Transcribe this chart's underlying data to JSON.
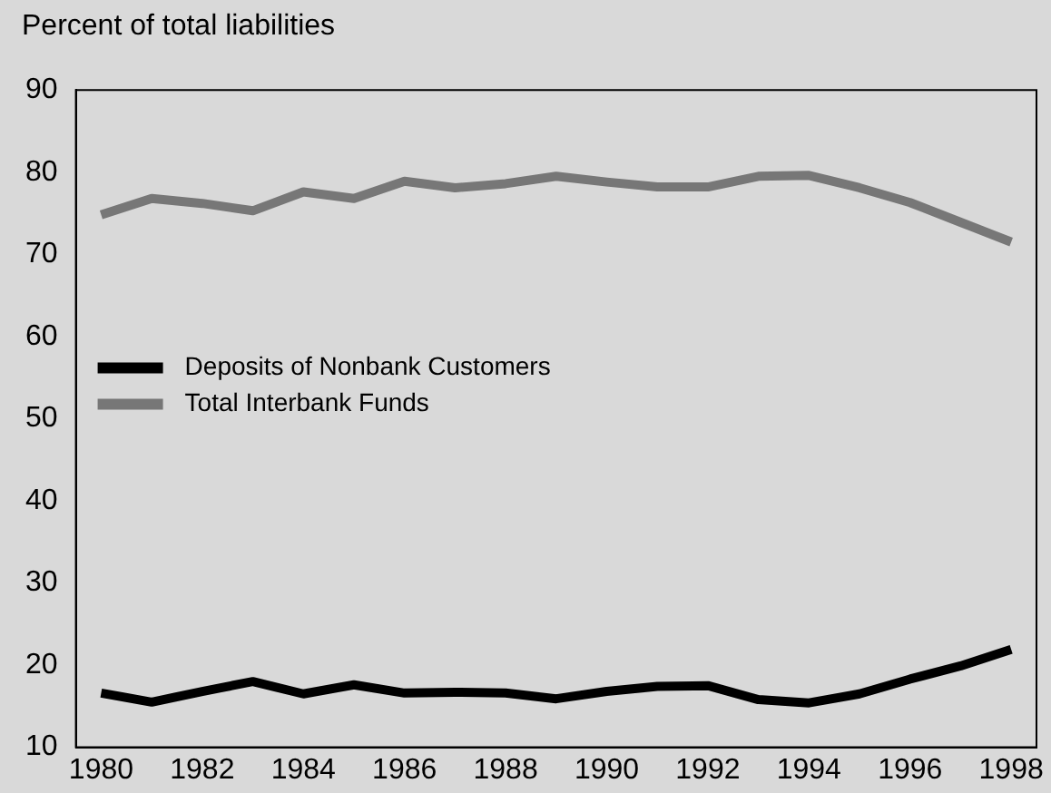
{
  "chart_data": {
    "type": "line",
    "ylabel": "Percent of total liabilities",
    "x": [
      1980,
      1981,
      1982,
      1983,
      1984,
      1985,
      1986,
      1987,
      1988,
      1989,
      1990,
      1991,
      1992,
      1993,
      1994,
      1995,
      1996,
      1997,
      1998
    ],
    "series": [
      {
        "name": "Deposits of Nonbank Customers",
        "color": "#000000",
        "values": [
          16.6,
          15.5,
          16.8,
          18.0,
          16.5,
          17.6,
          16.6,
          16.7,
          16.6,
          15.9,
          16.8,
          17.4,
          17.5,
          15.8,
          15.4,
          16.5,
          18.3,
          19.9,
          21.9
        ]
      },
      {
        "name": "Total Interbank Funds",
        "color": "#777777",
        "values": [
          74.8,
          76.8,
          76.2,
          75.3,
          77.6,
          76.8,
          78.9,
          78.1,
          78.6,
          79.5,
          78.8,
          78.2,
          78.2,
          79.5,
          79.6,
          78.1,
          76.3,
          73.9,
          71.5
        ]
      }
    ],
    "xlim": [
      1979.5,
      1998.5
    ],
    "xticks": [
      1980,
      1982,
      1984,
      1986,
      1988,
      1990,
      1992,
      1994,
      1996,
      1998
    ],
    "ylim": [
      10,
      90
    ],
    "yticks": [
      10,
      20,
      30,
      40,
      50,
      60,
      70,
      80,
      90
    ],
    "grid": false,
    "legend": "left",
    "marker": "none",
    "line_style": "solid"
  }
}
